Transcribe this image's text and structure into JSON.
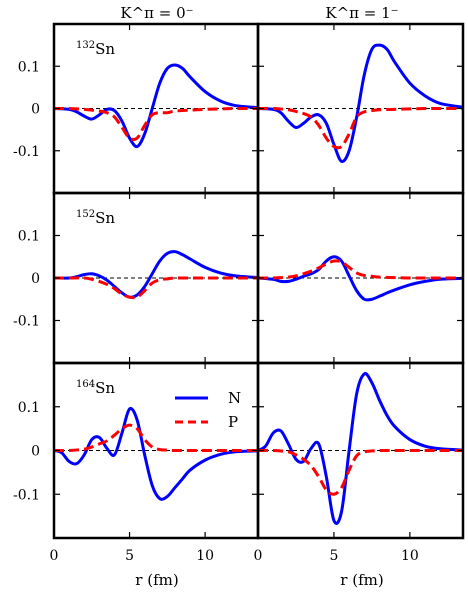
{
  "chart_data": {
    "type": "line",
    "column_titles": [
      "K^π = 0⁻",
      "K^π = 1⁻"
    ],
    "row_labels": [
      "132Sn",
      "152Sn",
      "164Sn"
    ],
    "xlabel": "r (fm)",
    "ylabel": "",
    "xlim": [
      0,
      13.5
    ],
    "ylim": [
      -0.2,
      0.2
    ],
    "xticks": [
      0,
      5,
      10
    ],
    "yticks": [
      0.1,
      0,
      -0.1
    ],
    "ytick_labels": [
      "0.1",
      "0",
      "-0.1"
    ],
    "reference_line": 0,
    "legend": {
      "position": "inside panel 164Sn K=0-, upper-right",
      "entries": [
        {
          "name": "N",
          "color": "#0000ff",
          "style": "solid"
        },
        {
          "name": "P",
          "color": "#ff0000",
          "style": "dashed"
        }
      ]
    },
    "panels": [
      {
        "nucleus": "132Sn",
        "mass": "132",
        "element": "Sn",
        "K": "0-",
        "series": [
          {
            "name": "N",
            "x": [
              0,
              1,
              1.5,
              2,
              2.5,
              3,
              3.5,
              4,
              4.5,
              5,
              5.5,
              6,
              6.5,
              7,
              7.5,
              8,
              8.5,
              9,
              10,
              11,
              12,
              13.5
            ],
            "y": [
              0,
              -0.002,
              -0.008,
              -0.018,
              -0.025,
              -0.015,
              -0.002,
              -0.005,
              -0.03,
              -0.07,
              -0.09,
              -0.06,
              0.0,
              0.06,
              0.095,
              0.103,
              0.095,
              0.075,
              0.04,
              0.018,
              0.007,
              0.002
            ]
          },
          {
            "name": "P",
            "x": [
              0,
              1,
              2,
              2.5,
              3,
              3.5,
              4,
              4.5,
              5,
              5.5,
              6,
              6.5,
              7,
              7.5,
              8,
              9,
              10,
              11,
              12,
              13.5
            ],
            "y": [
              0,
              0,
              -0.002,
              -0.004,
              -0.006,
              -0.01,
              -0.02,
              -0.045,
              -0.07,
              -0.07,
              -0.04,
              -0.015,
              -0.01,
              -0.01,
              -0.006,
              -0.004,
              -0.002,
              -0.001,
              0,
              0
            ]
          }
        ]
      },
      {
        "nucleus": "132Sn",
        "K": "1-",
        "series": [
          {
            "name": "N",
            "x": [
              0,
              1,
              1.5,
              2,
              2.5,
              3,
              3.5,
              4,
              4.5,
              5,
              5.5,
              6,
              6.5,
              7,
              7.5,
              8,
              8.5,
              9,
              10,
              11,
              12,
              13.5
            ],
            "y": [
              0,
              -0.002,
              -0.01,
              -0.03,
              -0.045,
              -0.035,
              -0.02,
              -0.015,
              -0.035,
              -0.085,
              -0.125,
              -0.1,
              -0.02,
              0.08,
              0.14,
              0.15,
              0.14,
              0.11,
              0.06,
              0.03,
              0.012,
              0.003
            ]
          },
          {
            "name": "P",
            "x": [
              0,
              1,
              2,
              2.5,
              3,
              3.5,
              4,
              4.5,
              5,
              5.5,
              6,
              6.5,
              7,
              7.5,
              8,
              9,
              10,
              11,
              12,
              13.5
            ],
            "y": [
              0,
              0,
              -0.003,
              -0.007,
              -0.012,
              -0.02,
              -0.04,
              -0.07,
              -0.09,
              -0.09,
              -0.06,
              -0.02,
              -0.008,
              -0.005,
              -0.003,
              -0.002,
              -0.001,
              0,
              0,
              0
            ]
          }
        ]
      },
      {
        "nucleus": "152Sn",
        "mass": "152",
        "element": "Sn",
        "K": "0-",
        "series": [
          {
            "name": "N",
            "x": [
              0,
              1,
              1.5,
              2,
              2.5,
              3,
              3.5,
              4,
              4.5,
              5,
              5.5,
              6,
              6.5,
              7,
              7.5,
              8,
              8.5,
              9,
              10,
              11,
              12,
              13.5
            ],
            "y": [
              0,
              0,
              0.003,
              0.008,
              0.01,
              0.005,
              -0.005,
              -0.02,
              -0.035,
              -0.045,
              -0.04,
              -0.02,
              0.01,
              0.04,
              0.058,
              0.062,
              0.055,
              0.045,
              0.025,
              0.012,
              0.005,
              0.001
            ]
          },
          {
            "name": "P",
            "x": [
              0,
              1,
              2,
              2.5,
              3,
              3.5,
              4,
              4.5,
              5,
              5.5,
              6,
              6.5,
              7,
              7.5,
              8,
              9,
              10,
              11,
              12,
              13.5
            ],
            "y": [
              0,
              0,
              0,
              -0.003,
              -0.008,
              -0.015,
              -0.025,
              -0.038,
              -0.045,
              -0.045,
              -0.03,
              -0.012,
              -0.004,
              -0.002,
              0,
              0,
              0,
              0,
              0,
              0
            ]
          }
        ]
      },
      {
        "nucleus": "152Sn",
        "K": "1-",
        "series": [
          {
            "name": "N",
            "x": [
              0,
              1,
              1.5,
              2,
              2.5,
              3,
              3.5,
              4,
              4.5,
              5,
              5.5,
              6,
              6.5,
              7,
              7.5,
              8,
              8.5,
              9,
              10,
              11,
              12,
              13.5
            ],
            "y": [
              0,
              -0.003,
              -0.008,
              -0.008,
              -0.003,
              0.004,
              0.01,
              0.02,
              0.04,
              0.05,
              0.04,
              0.005,
              -0.03,
              -0.05,
              -0.05,
              -0.043,
              -0.035,
              -0.028,
              -0.016,
              -0.008,
              -0.003,
              -0.001
            ]
          },
          {
            "name": "P",
            "x": [
              0,
              1,
              2,
              2.5,
              3,
              3.5,
              4,
              4.5,
              5,
              5.5,
              6,
              6.5,
              7,
              7.5,
              8,
              9,
              10,
              11,
              12,
              13.5
            ],
            "y": [
              0,
              0,
              0.002,
              0.005,
              0.01,
              0.016,
              0.024,
              0.033,
              0.04,
              0.038,
              0.025,
              0.012,
              0.006,
              0.004,
              0.002,
              0.001,
              0,
              0,
              0,
              0
            ]
          }
        ]
      },
      {
        "nucleus": "164Sn",
        "mass": "164",
        "element": "Sn",
        "K": "0-",
        "series": [
          {
            "name": "N",
            "x": [
              0,
              0.5,
              1,
              1.5,
              2,
              2.5,
              3,
              3.5,
              4,
              4.5,
              5,
              5.5,
              6,
              6.5,
              7,
              7.5,
              8,
              8.5,
              9,
              10,
              11,
              12,
              13.5
            ],
            "y": [
              0,
              -0.005,
              -0.025,
              -0.03,
              -0.01,
              0.025,
              0.03,
              0.005,
              -0.01,
              0.04,
              0.095,
              0.07,
              -0.01,
              -0.08,
              -0.11,
              -0.105,
              -0.085,
              -0.065,
              -0.045,
              -0.022,
              -0.009,
              -0.003,
              -0.001
            ]
          },
          {
            "name": "P",
            "x": [
              0,
              1,
              2,
              2.5,
              3,
              3.5,
              4,
              4.5,
              5,
              5.5,
              6,
              6.5,
              7,
              7.5,
              8,
              9,
              10,
              11,
              12,
              13.5
            ],
            "y": [
              0,
              0,
              0.003,
              0.008,
              0.015,
              0.022,
              0.035,
              0.05,
              0.058,
              0.05,
              0.025,
              0.008,
              0.002,
              0.001,
              0,
              0,
              0,
              0,
              0,
              0
            ]
          }
        ]
      },
      {
        "nucleus": "164Sn",
        "K": "1-",
        "series": [
          {
            "name": "N",
            "x": [
              0,
              0.5,
              1,
              1.5,
              2,
              2.5,
              3,
              3.5,
              4,
              4.5,
              5,
              5.5,
              6,
              6.5,
              7,
              7.5,
              8,
              8.5,
              9,
              10,
              11,
              12,
              13.5
            ],
            "y": [
              0,
              0.01,
              0.04,
              0.045,
              0.015,
              -0.02,
              -0.025,
              0.005,
              0.015,
              -0.06,
              -0.16,
              -0.14,
              0.0,
              0.13,
              0.175,
              0.155,
              0.115,
              0.08,
              0.055,
              0.025,
              0.01,
              0.004,
              0.001
            ]
          },
          {
            "name": "P",
            "x": [
              0,
              1,
              2,
              2.5,
              3,
              3.5,
              4,
              4.5,
              5,
              5.5,
              6,
              6.5,
              7,
              7.5,
              8,
              9,
              10,
              11,
              12,
              13.5
            ],
            "y": [
              0,
              0,
              -0.003,
              -0.01,
              -0.02,
              -0.035,
              -0.06,
              -0.09,
              -0.1,
              -0.085,
              -0.045,
              -0.012,
              -0.003,
              -0.001,
              0,
              0,
              0,
              0,
              0,
              0
            ]
          }
        ]
      }
    ]
  }
}
